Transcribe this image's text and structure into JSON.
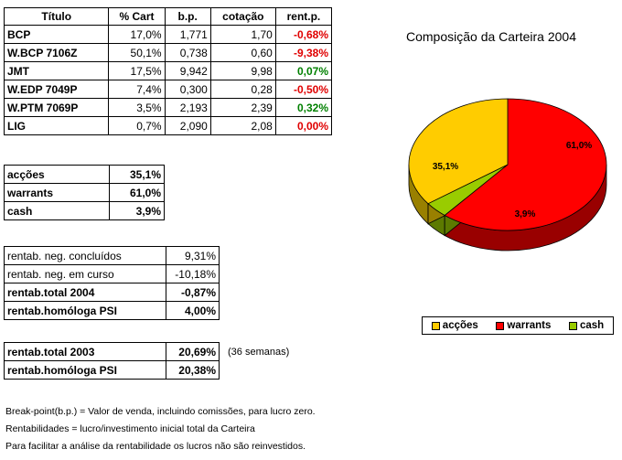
{
  "portfolio_table": {
    "headers": [
      "Título",
      "% Cart",
      "b.p.",
      "cotação",
      "rent.p."
    ],
    "rows": [
      {
        "titulo": "BCP",
        "cart": "17,0%",
        "bp": "1,771",
        "cotacao": "1,70",
        "rent": "-0,68%",
        "sign": "neg"
      },
      {
        "titulo": "W.BCP 7106Z",
        "cart": "50,1%",
        "bp": "0,738",
        "cotacao": "0,60",
        "rent": "-9,38%",
        "sign": "neg"
      },
      {
        "titulo": "JMT",
        "cart": "17,5%",
        "bp": "9,942",
        "cotacao": "9,98",
        "rent": "0,07%",
        "sign": "pos"
      },
      {
        "titulo": "W.EDP 7049P",
        "cart": "7,4%",
        "bp": "0,300",
        "cotacao": "0,28",
        "rent": "-0,50%",
        "sign": "neg"
      },
      {
        "titulo": "W.PTM 7069P",
        "cart": "3,5%",
        "bp": "2,193",
        "cotacao": "2,39",
        "rent": "0,32%",
        "sign": "pos"
      },
      {
        "titulo": "LIG",
        "cart": "0,7%",
        "bp": "2,090",
        "cotacao": "2,08",
        "rent": "0,00%",
        "sign": "neg"
      }
    ]
  },
  "allocation_table": {
    "rows": [
      {
        "label": "acções",
        "value": "35,1%"
      },
      {
        "label": "warrants",
        "value": "61,0%"
      },
      {
        "label": "cash",
        "value": "3,9%"
      }
    ]
  },
  "returns_table": {
    "rows": [
      {
        "label": "rentab. neg. concluídos",
        "value": "9,31%",
        "bold": false
      },
      {
        "label": "rentab. neg. em curso",
        "value": "-10,18%",
        "bold": false
      },
      {
        "label": "rentab.total 2004",
        "value": "-0,87%",
        "bold": true
      },
      {
        "label": "rentab.homóloga PSI",
        "value": "4,00%",
        "bold": true
      }
    ]
  },
  "history_table": {
    "rows": [
      {
        "label": "rentab.total 2003",
        "value": "20,69%"
      },
      {
        "label": "rentab.homóloga PSI",
        "value": "20,38%"
      }
    ],
    "note": "(36 semanas)"
  },
  "footer_notes": [
    "Break-point(b.p.) = Valor de venda, incluindo comissões, para lucro zero.",
    "Rentabilidades = lucro/investimento inicial total da Carteira",
    "Para facilitar a análise da rentabilidade os lucros não são reinvestidos."
  ],
  "colors": {
    "negative": "#e00000",
    "positive": "#008000",
    "accoes": "#ffcc00",
    "warrants": "#ff0000",
    "cash": "#99cc00"
  },
  "chart_data": {
    "type": "pie",
    "title": "Composição da Carteira 2004",
    "categories": [
      "acções",
      "warrants",
      "cash"
    ],
    "values": [
      35.1,
      61.0,
      3.9
    ],
    "labels": [
      "35,1%",
      "61,0%",
      "3,9%"
    ],
    "colors": [
      "#ffcc00",
      "#ff0000",
      "#99cc00"
    ],
    "side_colors": [
      "#998000",
      "#990000",
      "#5c7a00"
    ],
    "legend_position": "bottom",
    "style": "3d"
  }
}
